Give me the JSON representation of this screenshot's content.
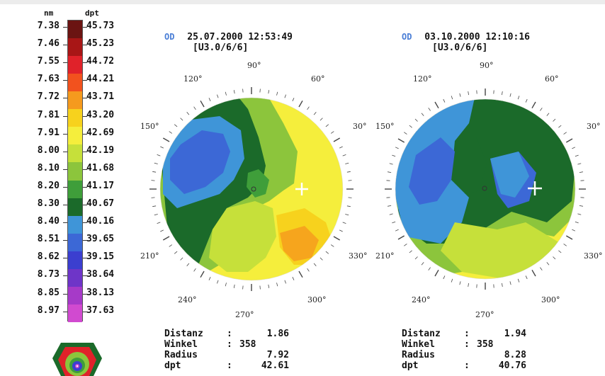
{
  "scale": {
    "header_nm": "nm",
    "header_dpt": "dpt",
    "rows": [
      {
        "nm": "7.38",
        "dpt": "45.73",
        "color": "#6b1412"
      },
      {
        "nm": "7.46",
        "dpt": "45.23",
        "color": "#a81616"
      },
      {
        "nm": "7.55",
        "dpt": "44.72",
        "color": "#e0222a"
      },
      {
        "nm": "7.63",
        "dpt": "44.21",
        "color": "#f2521e"
      },
      {
        "nm": "7.72",
        "dpt": "43.71",
        "color": "#f59a1e"
      },
      {
        "nm": "7.81",
        "dpt": "43.20",
        "color": "#f7d21d"
      },
      {
        "nm": "7.91",
        "dpt": "42.69",
        "color": "#f5ee3c"
      },
      {
        "nm": "8.00",
        "dpt": "42.19",
        "color": "#c6e03a"
      },
      {
        "nm": "8.10",
        "dpt": "41.68",
        "color": "#8cc53c"
      },
      {
        "nm": "8.20",
        "dpt": "41.17",
        "color": "#3f9e3a"
      },
      {
        "nm": "8.30",
        "dpt": "40.67",
        "color": "#1b6a2a"
      },
      {
        "nm": "8.40",
        "dpt": "40.16",
        "color": "#3f95d8"
      },
      {
        "nm": "8.51",
        "dpt": "39.65",
        "color": "#3c68d6"
      },
      {
        "nm": "8.62",
        "dpt": "39.15",
        "color": "#3b3fcf"
      },
      {
        "nm": "8.73",
        "dpt": "38.64",
        "color": "#6e35c8"
      },
      {
        "nm": "8.85",
        "dpt": "38.13",
        "color": "#a63ac8"
      },
      {
        "nm": "8.97",
        "dpt": "37.63",
        "color": "#d14ad0"
      }
    ]
  },
  "maps": [
    {
      "eye": "OD",
      "datetime": "25.07.2000 12:53:49",
      "version": "[U3.0/6/6]",
      "angles": {
        "a90": "90°",
        "a60": "60°",
        "a30": "30°",
        "a120": "120°",
        "a150": "150°",
        "a210": "210°",
        "a240": "240°",
        "a270": "270°",
        "a300": "300°",
        "a330": "330°"
      },
      "stats": {
        "distanz_label": "Distanz",
        "distanz": "1.86",
        "winkel_label": "Winkel",
        "winkel": "358",
        "radius_label": "Radius",
        "radius": "7.92",
        "dpt_label": "dpt",
        "dpt": "42.61"
      }
    },
    {
      "eye": "OD",
      "datetime": "03.10.2000 12:10:16",
      "version": "[U3.0/6/6]",
      "angles": {
        "a90": "90°",
        "a60": "60°",
        "a30": "30°",
        "a120": "120°",
        "a150": "150°",
        "a210": "210°",
        "a240": "240°",
        "a270": "270°",
        "a300": "300°",
        "a330": "330°"
      },
      "stats": {
        "distanz_label": "Distanz",
        "distanz": "1.94",
        "winkel_label": "Winkel",
        "winkel": "358",
        "radius_label": "Radius",
        "radius": "8.28",
        "dpt_label": "dpt",
        "dpt": "40.76"
      }
    }
  ]
}
